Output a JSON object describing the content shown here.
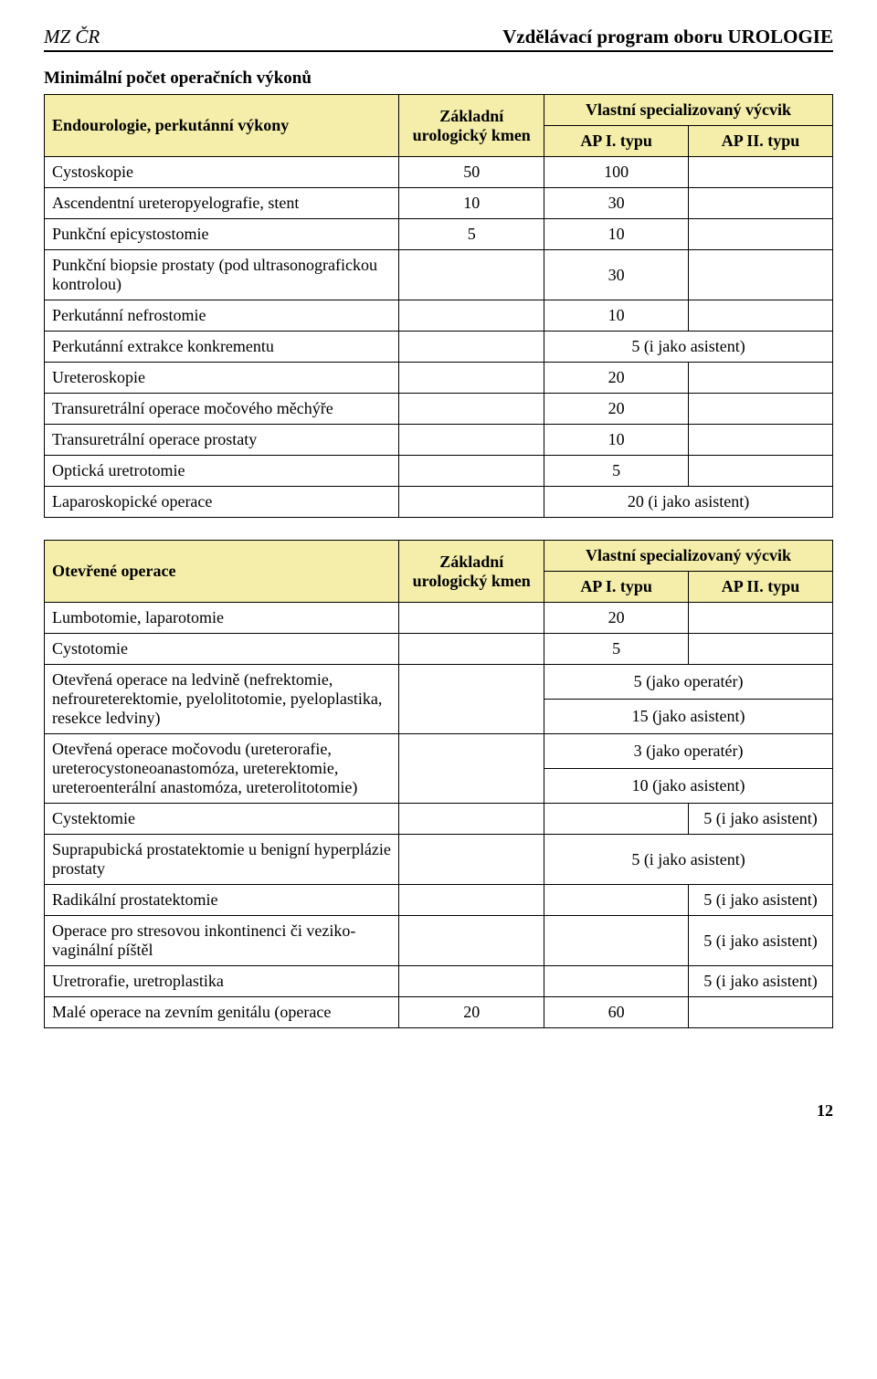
{
  "docHeader": {
    "left": "MZ ČR",
    "right": "Vzdělávací program oboru UROLOGIE"
  },
  "sectionTitle": "Minimální počet operačních výkonů",
  "table1": {
    "corner": "Endourologie, perkutánní výkony",
    "col2": "Základní urologický kmen",
    "topSpan": "Vlastní specializovaný výcvik",
    "sub1": "AP I. typu",
    "sub2": "AP II. typu",
    "rows": {
      "r0": {
        "label": "Cystoskopie",
        "c2": "50",
        "c3": "100",
        "c4": ""
      },
      "r1": {
        "label": "Ascendentní ureteropyelografie, stent",
        "c2": "10",
        "c3": "30",
        "c4": ""
      },
      "r2": {
        "label": "Punkční epicystostomie",
        "c2": "5",
        "c3": "10",
        "c4": ""
      },
      "r3": {
        "label": "Punkční biopsie prostaty (pod ultrasonografickou kontrolou)",
        "c2": "",
        "c3": "30",
        "c4": ""
      },
      "r4": {
        "label": "Perkutánní nefrostomie",
        "c2": "",
        "c3": "10",
        "c4": ""
      },
      "r5": {
        "label": "Perkutánní extrakce konkrementu",
        "c2": "",
        "c34": "5 (i jako asistent)"
      },
      "r6": {
        "label": "Ureteroskopie",
        "c2": "",
        "c3": "20",
        "c4": ""
      },
      "r7": {
        "label": "Transuretrální operace močového měchýře",
        "c2": "",
        "c3": "20",
        "c4": ""
      },
      "r8": {
        "label": "Transuretrální operace prostaty",
        "c2": "",
        "c3": "10",
        "c4": ""
      },
      "r9": {
        "label": "Optická uretrotomie",
        "c2": "",
        "c3": "5",
        "c4": ""
      },
      "r10": {
        "label": "Laparoskopické operace",
        "c2": "",
        "c34": "20 (i jako asistent)"
      }
    }
  },
  "table2": {
    "corner": "Otevřené operace",
    "col2": "Základní urologický kmen",
    "topSpan": "Vlastní specializovaný výcvik",
    "sub1": "AP I. typu",
    "sub2": "AP II. typu",
    "rows": {
      "r0": {
        "label": "Lumbotomie, laparotomie",
        "c2": "",
        "c3": "20",
        "c4": ""
      },
      "r1": {
        "label": "Cystotomie",
        "c2": "",
        "c3": "5",
        "c4": ""
      },
      "r2": {
        "label": "Otevřená operace na ledvině (nefrektomie, nefroureterektomie, pyelolitotomie, pyeloplastika, resekce ledviny)",
        "c2": "",
        "c34a": "5 (jako operatér)",
        "c34b": "15 (jako asistent)"
      },
      "r3": {
        "label": "Otevřená operace močovodu (ureterorafie, ureterocystoneoanastomóza, ureterektomie, ureteroenterální anastomóza, ureterolitotomie)",
        "c2": "",
        "c34a": "3 (jako operatér)",
        "c34b": "10 (jako asistent)"
      },
      "r4": {
        "label": "Cystektomie",
        "c2": "",
        "c3": "",
        "c4": "5 (i jako asistent)"
      },
      "r5": {
        "label": "Suprapubická prostatektomie u benigní hyperplázie prostaty",
        "c2": "",
        "c34": "5 (i jako asistent)"
      },
      "r6": {
        "label": "Radikální prostatektomie",
        "c2": "",
        "c3": "",
        "c4": "5 (i jako asistent)"
      },
      "r7": {
        "label": "Operace pro stresovou inkontinenci či veziko-vaginální píštěl",
        "c2": "",
        "c3": "",
        "c4": "5 (i jako asistent)"
      },
      "r8": {
        "label": "Uretrorafie, uretroplastika",
        "c2": "",
        "c3": "",
        "c4": "5 (i jako asistent)"
      },
      "r9": {
        "label": "Malé operace na zevním genitálu (operace",
        "c2": "20",
        "c3": "60",
        "c4": ""
      }
    }
  },
  "pageNumber": "12",
  "colors": {
    "headerBg": "#f4eeaa",
    "border": "#000000",
    "text": "#000000",
    "background": "#ffffff"
  }
}
